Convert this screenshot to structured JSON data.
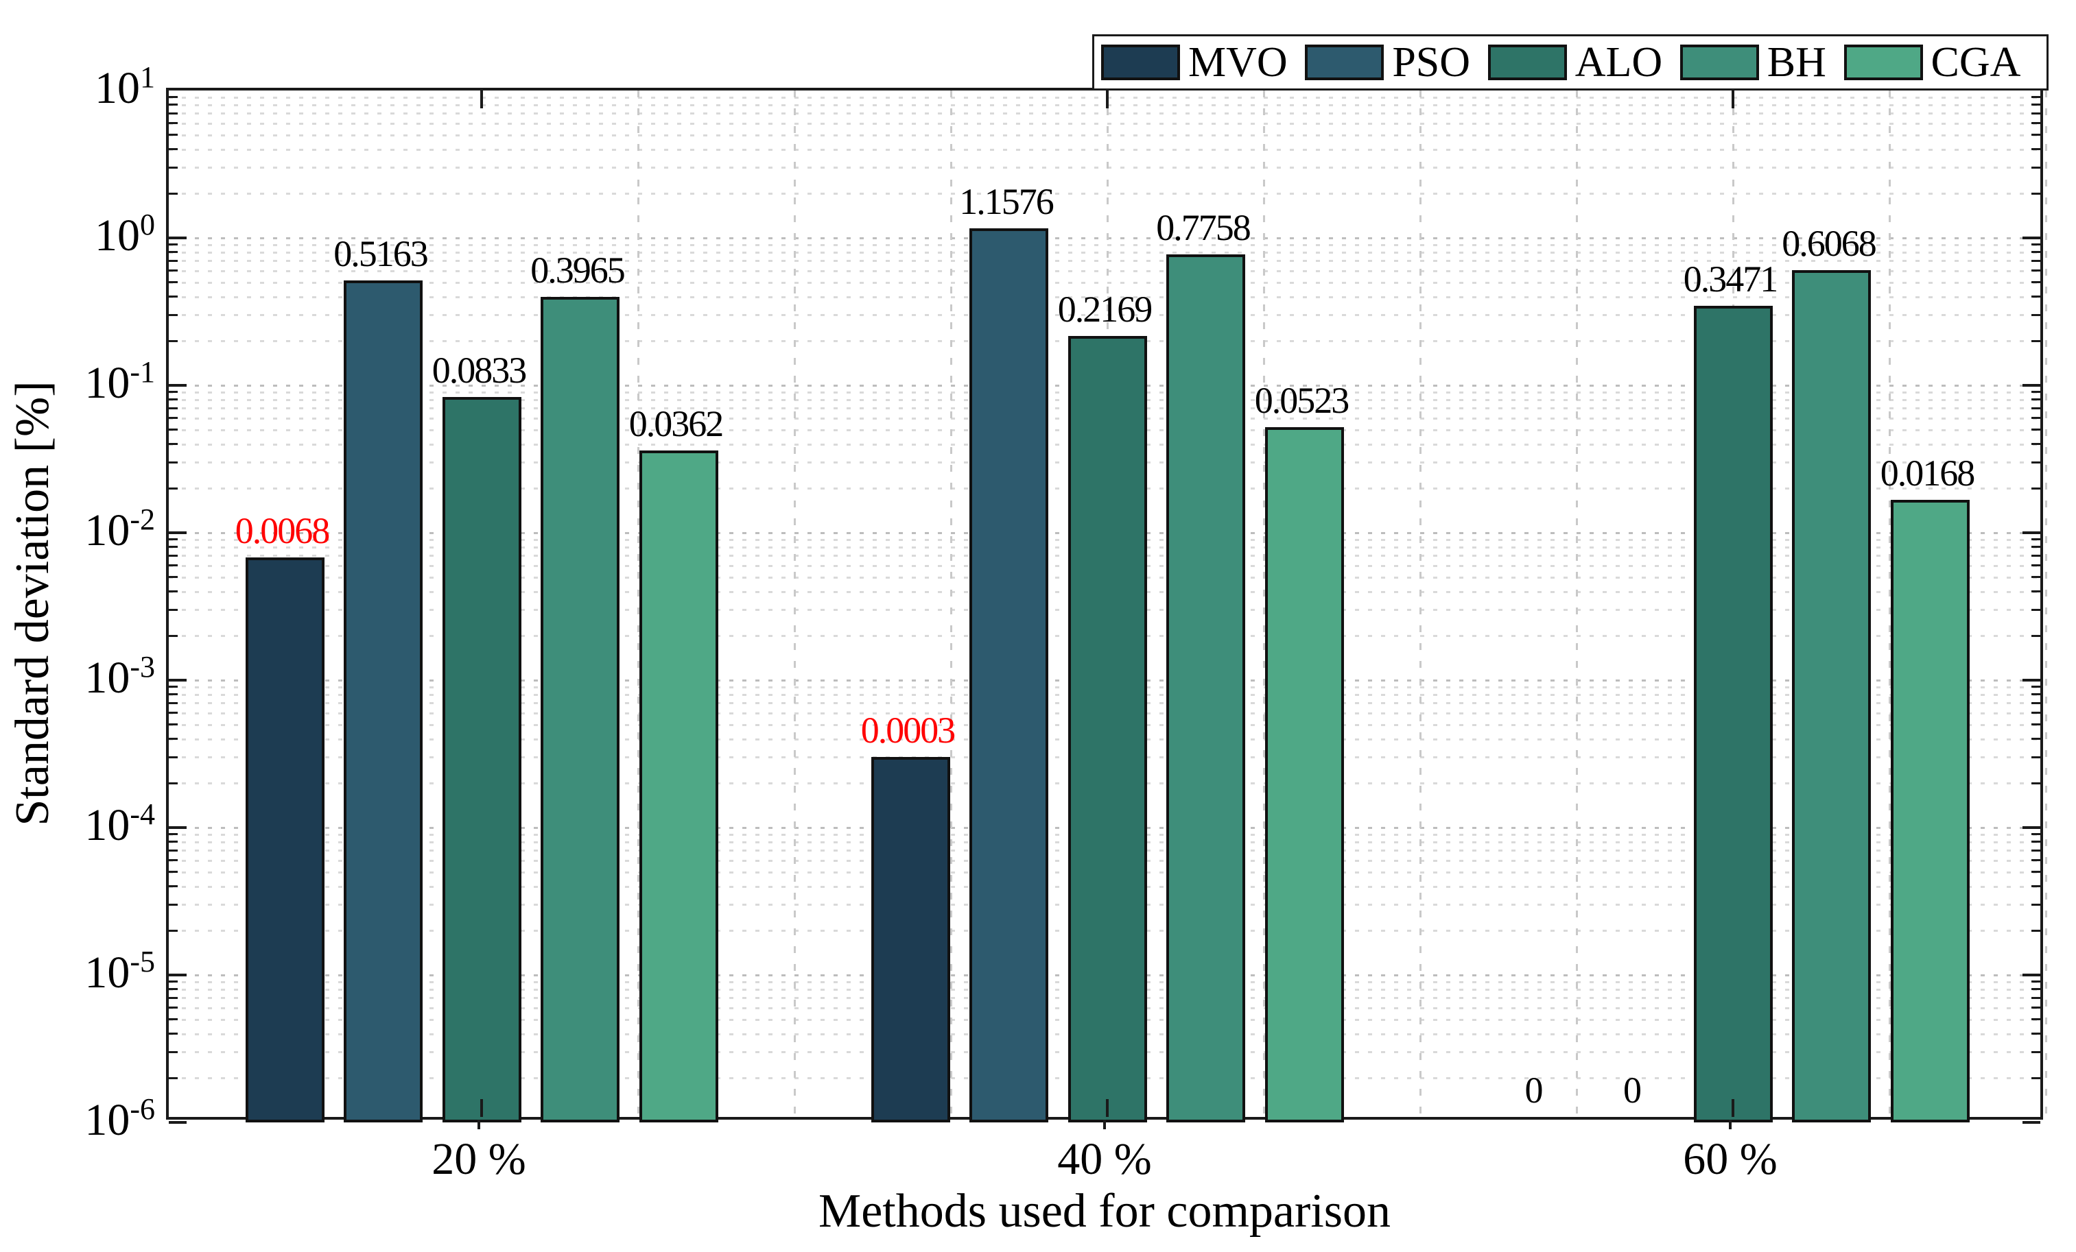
{
  "chart_data": {
    "type": "bar",
    "title": "",
    "xlabel": "Methods used for comparison",
    "ylabel": "Standard deviation [%]",
    "yscale": "log",
    "ylim": [
      1e-06,
      10
    ],
    "y_tick_exponents": [
      1,
      0,
      -1,
      -2,
      -3,
      -4,
      -5,
      -6
    ],
    "categories": [
      "20 %",
      "40 %",
      "60 %"
    ],
    "series": [
      {
        "name": "MVO",
        "color": "#1d3c52",
        "values": [
          0.0068,
          0.0003,
          0
        ]
      },
      {
        "name": "PSO",
        "color": "#2d5a6e",
        "values": [
          0.5163,
          1.1576,
          0
        ]
      },
      {
        "name": "ALO",
        "color": "#2e7467",
        "values": [
          0.0833,
          0.2169,
          0.3471
        ]
      },
      {
        "name": "BH",
        "color": "#3e8e7a",
        "values": [
          0.3965,
          0.7758,
          0.6068
        ]
      },
      {
        "name": "CGA",
        "color": "#4fa886",
        "values": [
          0.0362,
          0.0523,
          0.0168
        ]
      }
    ],
    "value_labels": [
      [
        "0.0068",
        "0.5163",
        "0.0833",
        "0.3965",
        "0.0362"
      ],
      [
        "0.0003",
        "1.1576",
        "0.2169",
        "0.7758",
        "0.0523"
      ],
      [
        "0",
        "0",
        "0.3471",
        "0.6068",
        "0.0168"
      ]
    ],
    "red_value_flags": [
      [
        true,
        false,
        false,
        false,
        false
      ],
      [
        true,
        false,
        false,
        false,
        false
      ],
      [
        false,
        false,
        false,
        false,
        false
      ]
    ],
    "highlight_color": "#ff0000",
    "bar_edge_color": "#111111",
    "layout": {
      "grid": true,
      "y_minor_grid_dotted": true,
      "x_minor_grid_dashed": true,
      "x_minor_grid_step": 0.25,
      "legend_position": "top-right",
      "legend_orientation": "horizontal",
      "frame_color": "#1a1a1a",
      "major_grid_color": "#bdbdbd",
      "minor_grid_color": "#d9d9d9",
      "vertical_grid_color": "#c9c9c9"
    }
  }
}
